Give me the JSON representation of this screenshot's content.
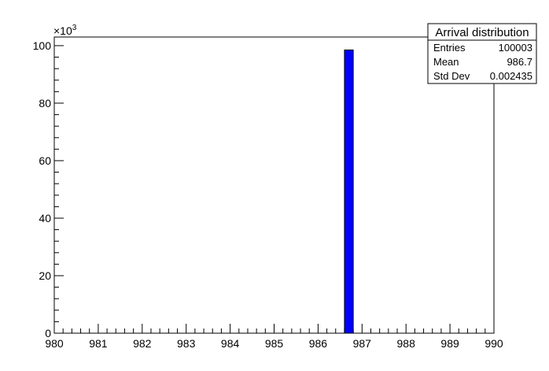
{
  "chart_data": {
    "type": "bar",
    "title": "",
    "xlabel": "",
    "ylabel": "",
    "xlim": [
      980,
      990
    ],
    "ylim": [
      0,
      103000
    ],
    "x_ticks": [
      980,
      981,
      982,
      983,
      984,
      985,
      986,
      987,
      988,
      989,
      990
    ],
    "y_ticks": [
      0,
      20,
      40,
      60,
      80,
      100
    ],
    "y_exponent_label": "×10",
    "y_exponent_power": "3",
    "grid": false,
    "bin_width": 0.2,
    "bins": [
      {
        "x_low": 986.6,
        "x_high": 986.8,
        "value": 98500
      }
    ],
    "bar_color": "#0000ff",
    "stats_box": {
      "title": "Arrival distribution",
      "rows": [
        {
          "label": "Entries",
          "value": "100003"
        },
        {
          "label": "Mean",
          "value": "986.7"
        },
        {
          "label": "Std Dev",
          "value": "0.002435"
        }
      ],
      "placement": "top-right"
    }
  }
}
